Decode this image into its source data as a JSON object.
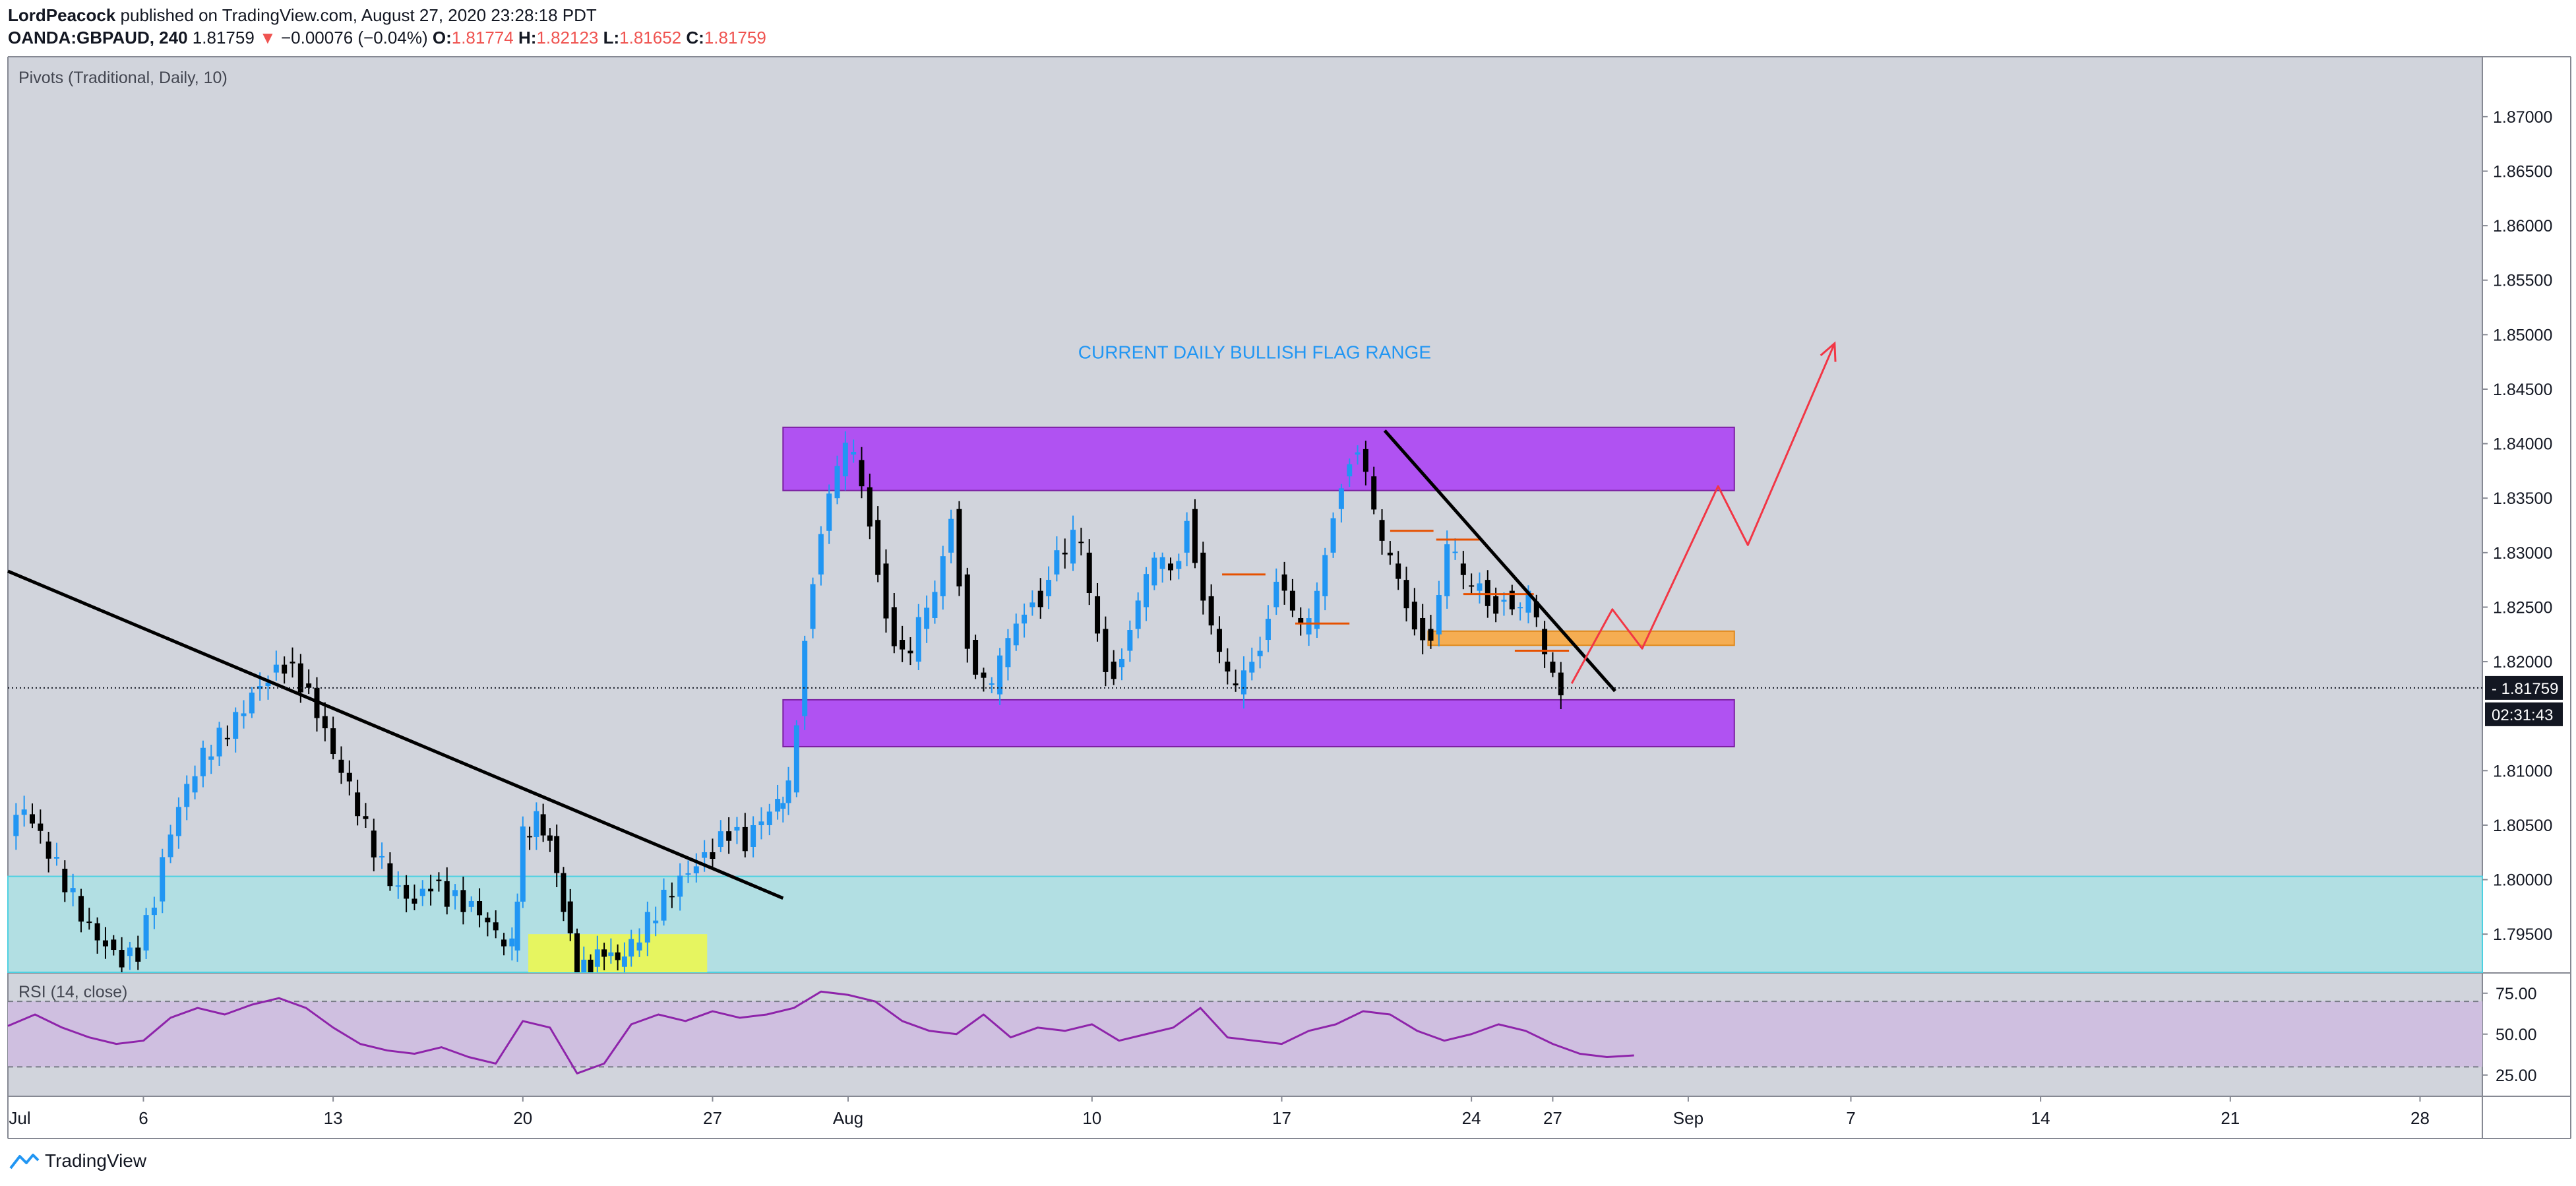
{
  "header": {
    "author": "LordPeacock",
    "published_text": "published on TradingView.com, August 27, 2020 23:28:18 PDT",
    "symbol": "OANDA:GBPAUD, 240",
    "last": "1.81759",
    "change_arrow": "▼",
    "change": "−0.00076 (−0.04%)",
    "o_label": "O:",
    "o_value": "1.81774",
    "h_label": "H:",
    "h_value": "1.82123",
    "l_label": "L:",
    "l_value": "1.81652",
    "c_label": "C:",
    "c_value": "1.81759"
  },
  "footer": {
    "brand": "TradingView",
    "logo_icon": "tradingview-logo-icon"
  },
  "chart_data": {
    "type": "candlestick",
    "symbol": "OANDA:GBPAUD",
    "timeframe": "240",
    "indicator_labels": {
      "pivots": "Pivots (Traditional, Daily, 10)",
      "rsi": "RSI (14, close)"
    },
    "annotation": "CURRENT DAILY BULLISH FLAG RANGE",
    "y_axis": {
      "ticks": [
        "1.87000",
        "1.86500",
        "1.86000",
        "1.85500",
        "1.85000",
        "1.84500",
        "1.84000",
        "1.83500",
        "1.83000",
        "1.82500",
        "1.82000",
        "1.81500",
        "1.81000",
        "1.80500",
        "1.80000",
        "1.79500"
      ],
      "range": [
        1.7915,
        1.8755
      ]
    },
    "x_axis": {
      "ticks": [
        "Jul",
        "6",
        "13",
        "20",
        "27",
        "Aug",
        "10",
        "17",
        "24",
        "27",
        "Sep",
        "7",
        "14",
        "21",
        "28"
      ],
      "tick_days": [
        1,
        6,
        13,
        20,
        27,
        32,
        41,
        48,
        55,
        58,
        63,
        69,
        76,
        83,
        90
      ],
      "range_days": [
        1,
        92.3
      ]
    },
    "price_label": "1.81759",
    "countdown_label": "02:31:43",
    "rsi_axis": {
      "ticks": [
        "75.00",
        "50.00",
        "25.00"
      ],
      "range": [
        12,
        87
      ],
      "band": [
        30,
        70
      ]
    },
    "colors": {
      "background": "#d1d4dc",
      "up": "#2196f3",
      "down": "#000000",
      "zone_purple": "#b052f2",
      "zone_orange": "#f5ad52",
      "zone_teal": "#b2dfe3",
      "zone_yellow": "#e6f560",
      "projection": "#f23645",
      "rsi_line": "#8e24aa",
      "rsi_band": "#cfbfe0",
      "annotation": "#2196f3"
    },
    "path_points": [
      [
        1.0,
        1.804
      ],
      [
        1.6,
        1.806
      ],
      [
        2.2,
        1.8035
      ],
      [
        2.8,
        1.801
      ],
      [
        3.4,
        1.7985
      ],
      [
        4.0,
        1.796
      ],
      [
        4.6,
        1.7945
      ],
      [
        5.2,
        1.793
      ],
      [
        5.8,
        1.7935
      ],
      [
        6.4,
        1.798
      ],
      [
        7.0,
        1.804
      ],
      [
        7.6,
        1.808
      ],
      [
        8.2,
        1.811
      ],
      [
        8.8,
        1.813
      ],
      [
        9.4,
        1.815
      ],
      [
        10.0,
        1.8175
      ],
      [
        10.6,
        1.819
      ],
      [
        11.2,
        1.82
      ],
      [
        11.8,
        1.818
      ],
      [
        12.4,
        1.815
      ],
      [
        13.0,
        1.811
      ],
      [
        13.6,
        1.808
      ],
      [
        14.2,
        1.8045
      ],
      [
        14.8,
        1.8015
      ],
      [
        15.4,
        1.7995
      ],
      [
        16.0,
        1.7985
      ],
      [
        16.6,
        1.8
      ],
      [
        17.2,
        1.7985
      ],
      [
        17.8,
        1.7975
      ],
      [
        18.4,
        1.7965
      ],
      [
        19.0,
        1.7945
      ],
      [
        19.6,
        1.7935
      ],
      [
        20.0,
        1.804
      ],
      [
        20.5,
        1.806
      ],
      [
        21.0,
        1.804
      ],
      [
        21.5,
        1.798
      ],
      [
        22.0,
        1.7915
      ],
      [
        22.5,
        1.792
      ],
      [
        23.0,
        1.793
      ],
      [
        23.5,
        1.792
      ],
      [
        24.0,
        1.7935
      ],
      [
        24.6,
        1.796
      ],
      [
        25.2,
        1.7985
      ],
      [
        25.8,
        1.8005
      ],
      [
        26.4,
        1.802
      ],
      [
        27.0,
        1.803
      ],
      [
        27.6,
        1.8045
      ],
      [
        28.2,
        1.803
      ],
      [
        28.8,
        1.805
      ],
      [
        29.4,
        1.8065
      ],
      [
        29.8,
        1.808
      ],
      [
        30.1,
        1.815
      ],
      [
        30.4,
        1.823
      ],
      [
        30.7,
        1.828
      ],
      [
        31.0,
        1.832
      ],
      [
        31.3,
        1.835
      ],
      [
        31.6,
        1.837
      ],
      [
        31.9,
        1.839
      ],
      [
        32.2,
        1.8385
      ],
      [
        32.5,
        1.836
      ],
      [
        32.8,
        1.833
      ],
      [
        33.1,
        1.829
      ],
      [
        33.4,
        1.825
      ],
      [
        33.7,
        1.822
      ],
      [
        34.0,
        1.821
      ],
      [
        34.3,
        1.82
      ],
      [
        34.6,
        1.823
      ],
      [
        34.9,
        1.824
      ],
      [
        35.2,
        1.826
      ],
      [
        35.5,
        1.83
      ],
      [
        35.8,
        1.834
      ],
      [
        36.1,
        1.828
      ],
      [
        36.4,
        1.822
      ],
      [
        36.7,
        1.819
      ],
      [
        37.0,
        1.818
      ],
      [
        37.3,
        1.817
      ],
      [
        37.6,
        1.8195
      ],
      [
        37.9,
        1.8215
      ],
      [
        38.2,
        1.8235
      ],
      [
        38.5,
        1.825
      ],
      [
        38.8,
        1.8265
      ],
      [
        39.1,
        1.826
      ],
      [
        39.4,
        1.828
      ],
      [
        39.7,
        1.83
      ],
      [
        40.0,
        1.829
      ],
      [
        40.3,
        1.831
      ],
      [
        40.6,
        1.83
      ],
      [
        40.9,
        1.826
      ],
      [
        41.2,
        1.823
      ],
      [
        41.5,
        1.82
      ],
      [
        41.8,
        1.8195
      ],
      [
        42.1,
        1.821
      ],
      [
        42.4,
        1.823
      ],
      [
        42.7,
        1.825
      ],
      [
        43.0,
        1.827
      ],
      [
        43.3,
        1.8285
      ],
      [
        43.6,
        1.829
      ],
      [
        43.9,
        1.8285
      ],
      [
        44.2,
        1.83
      ],
      [
        44.5,
        1.834
      ],
      [
        44.8,
        1.83
      ],
      [
        45.1,
        1.826
      ],
      [
        45.4,
        1.823
      ],
      [
        45.7,
        1.82
      ],
      [
        46.0,
        1.818
      ],
      [
        46.3,
        1.817
      ],
      [
        46.6,
        1.819
      ],
      [
        46.9,
        1.8205
      ],
      [
        47.2,
        1.822
      ],
      [
        47.5,
        1.825
      ],
      [
        47.8,
        1.828
      ],
      [
        48.1,
        1.8265
      ],
      [
        48.4,
        1.824
      ],
      [
        48.7,
        1.8225
      ],
      [
        49.0,
        1.823
      ],
      [
        49.3,
        1.826
      ],
      [
        49.6,
        1.83
      ],
      [
        49.9,
        1.834
      ],
      [
        50.2,
        1.837
      ],
      [
        50.5,
        1.839
      ],
      [
        50.8,
        1.8395
      ],
      [
        51.1,
        1.837
      ],
      [
        51.4,
        1.833
      ],
      [
        51.7,
        1.83
      ],
      [
        52.0,
        1.829
      ],
      [
        52.3,
        1.8275
      ],
      [
        52.6,
        1.8255
      ],
      [
        52.9,
        1.824
      ],
      [
        53.2,
        1.823
      ],
      [
        53.5,
        1.8225
      ],
      [
        53.8,
        1.826
      ],
      [
        54.1,
        1.83
      ],
      [
        54.4,
        1.829
      ],
      [
        54.7,
        1.827
      ],
      [
        55.0,
        1.8265
      ],
      [
        55.3,
        1.8275
      ],
      [
        55.6,
        1.826
      ],
      [
        55.9,
        1.8255
      ],
      [
        56.2,
        1.8265
      ],
      [
        56.5,
        1.825
      ],
      [
        56.8,
        1.8245
      ],
      [
        57.1,
        1.8255
      ],
      [
        57.4,
        1.823
      ],
      [
        57.7,
        1.82
      ],
      [
        58.0,
        1.819
      ],
      [
        58.3,
        1.8176
      ]
    ],
    "drawings": {
      "zones": [
        {
          "name": "upper-range-zone",
          "x": [
            29.6,
            64.7
          ],
          "y": [
            1.8357,
            1.8415
          ],
          "color": "#b052f2"
        },
        {
          "name": "lower-range-zone",
          "x": [
            29.6,
            64.7
          ],
          "y": [
            1.8122,
            1.8165
          ],
          "color": "#b052f2"
        },
        {
          "name": "orange-support-zone",
          "x": [
            53.4,
            64.7
          ],
          "y": [
            1.8215,
            1.8228
          ],
          "color": "#f5ad52"
        },
        {
          "name": "yellow-zone",
          "x": [
            20.2,
            26.8
          ],
          "y": [
            1.7915,
            1.795
          ],
          "color": "#e6f560"
        },
        {
          "name": "teal-demand-zone",
          "x": [
            1.0,
            92.3
          ],
          "y": [
            1.7915,
            1.8003
          ],
          "color": "#b2dfe3"
        }
      ],
      "trendlines": [
        {
          "name": "descending-trendline-left",
          "points": [
            [
              1.0,
              1.8283
            ],
            [
              29.6,
              1.7983
            ]
          ]
        },
        {
          "name": "descending-trendline-right",
          "points": [
            [
              51.8,
              1.8412
            ],
            [
              60.3,
              1.8173
            ]
          ]
        }
      ],
      "projection": {
        "name": "projected-path",
        "points": [
          [
            58.7,
            1.818
          ],
          [
            60.2,
            1.8248
          ],
          [
            61.3,
            1.8212
          ],
          [
            64.1,
            1.8361
          ],
          [
            65.2,
            1.8307
          ],
          [
            68.4,
            1.8492
          ]
        ]
      },
      "pivot_marks": [
        {
          "x": [
            45.8,
            47.4
          ],
          "y": 1.828
        },
        {
          "x": [
            48.5,
            50.5
          ],
          "y": 1.8235
        },
        {
          "x": [
            52.0,
            53.6
          ],
          "y": 1.832
        },
        {
          "x": [
            53.7,
            55.3
          ],
          "y": 1.8312
        },
        {
          "x": [
            54.7,
            57.3
          ],
          "y": 1.8262
        },
        {
          "x": [
            56.6,
            58.6
          ],
          "y": 1.821
        }
      ]
    },
    "rsi_points": [
      [
        1,
        55
      ],
      [
        2,
        62
      ],
      [
        3,
        54
      ],
      [
        4,
        48
      ],
      [
        5,
        44
      ],
      [
        6,
        46
      ],
      [
        7,
        60
      ],
      [
        8,
        66
      ],
      [
        9,
        62
      ],
      [
        10,
        68
      ],
      [
        11,
        72
      ],
      [
        12,
        66
      ],
      [
        13,
        54
      ],
      [
        14,
        44
      ],
      [
        15,
        40
      ],
      [
        16,
        38
      ],
      [
        17,
        42
      ],
      [
        18,
        36
      ],
      [
        19,
        32
      ],
      [
        20,
        58
      ],
      [
        21,
        54
      ],
      [
        22,
        26
      ],
      [
        23,
        32
      ],
      [
        24,
        56
      ],
      [
        25,
        62
      ],
      [
        26,
        58
      ],
      [
        27,
        64
      ],
      [
        28,
        60
      ],
      [
        29,
        62
      ],
      [
        30,
        66
      ],
      [
        31,
        76
      ],
      [
        32,
        74
      ],
      [
        33,
        70
      ],
      [
        34,
        58
      ],
      [
        35,
        52
      ],
      [
        36,
        50
      ],
      [
        37,
        62
      ],
      [
        38,
        48
      ],
      [
        39,
        54
      ],
      [
        40,
        52
      ],
      [
        41,
        56
      ],
      [
        42,
        46
      ],
      [
        43,
        50
      ],
      [
        44,
        54
      ],
      [
        45,
        66
      ],
      [
        46,
        48
      ],
      [
        47,
        46
      ],
      [
        48,
        44
      ],
      [
        49,
        52
      ],
      [
        50,
        56
      ],
      [
        51,
        64
      ],
      [
        52,
        62
      ],
      [
        53,
        52
      ],
      [
        54,
        46
      ],
      [
        55,
        50
      ],
      [
        56,
        56
      ],
      [
        57,
        52
      ],
      [
        58,
        44
      ],
      [
        59,
        38
      ],
      [
        60,
        36
      ],
      [
        61,
        37
      ]
    ]
  }
}
